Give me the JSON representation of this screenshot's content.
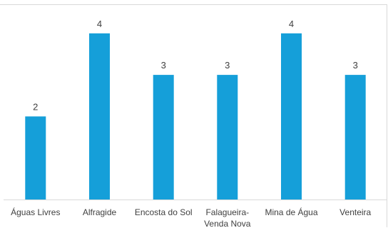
{
  "chart_data": {
    "type": "bar",
    "categories": [
      "Águas Livres",
      "Alfragide",
      "Encosta do Sol",
      "Falagueira-Venda Nova",
      "Mina de Água",
      "Venteira"
    ],
    "category_lines": [
      [
        "Águas Livres"
      ],
      [
        "Alfragide"
      ],
      [
        "Encosta do Sol"
      ],
      [
        "Falagueira-",
        "Venda Nova"
      ],
      [
        "Mina de Água"
      ],
      [
        "Venteira"
      ]
    ],
    "values": [
      2,
      4,
      3,
      3,
      4,
      3
    ],
    "data_labels": [
      "2",
      "4",
      "3",
      "3",
      "4",
      "3"
    ],
    "ylim": [
      0,
      4.7
    ],
    "grid": false,
    "legend": "none",
    "bar_color": "#159fd9",
    "axis_color": "#d9d9d9"
  }
}
